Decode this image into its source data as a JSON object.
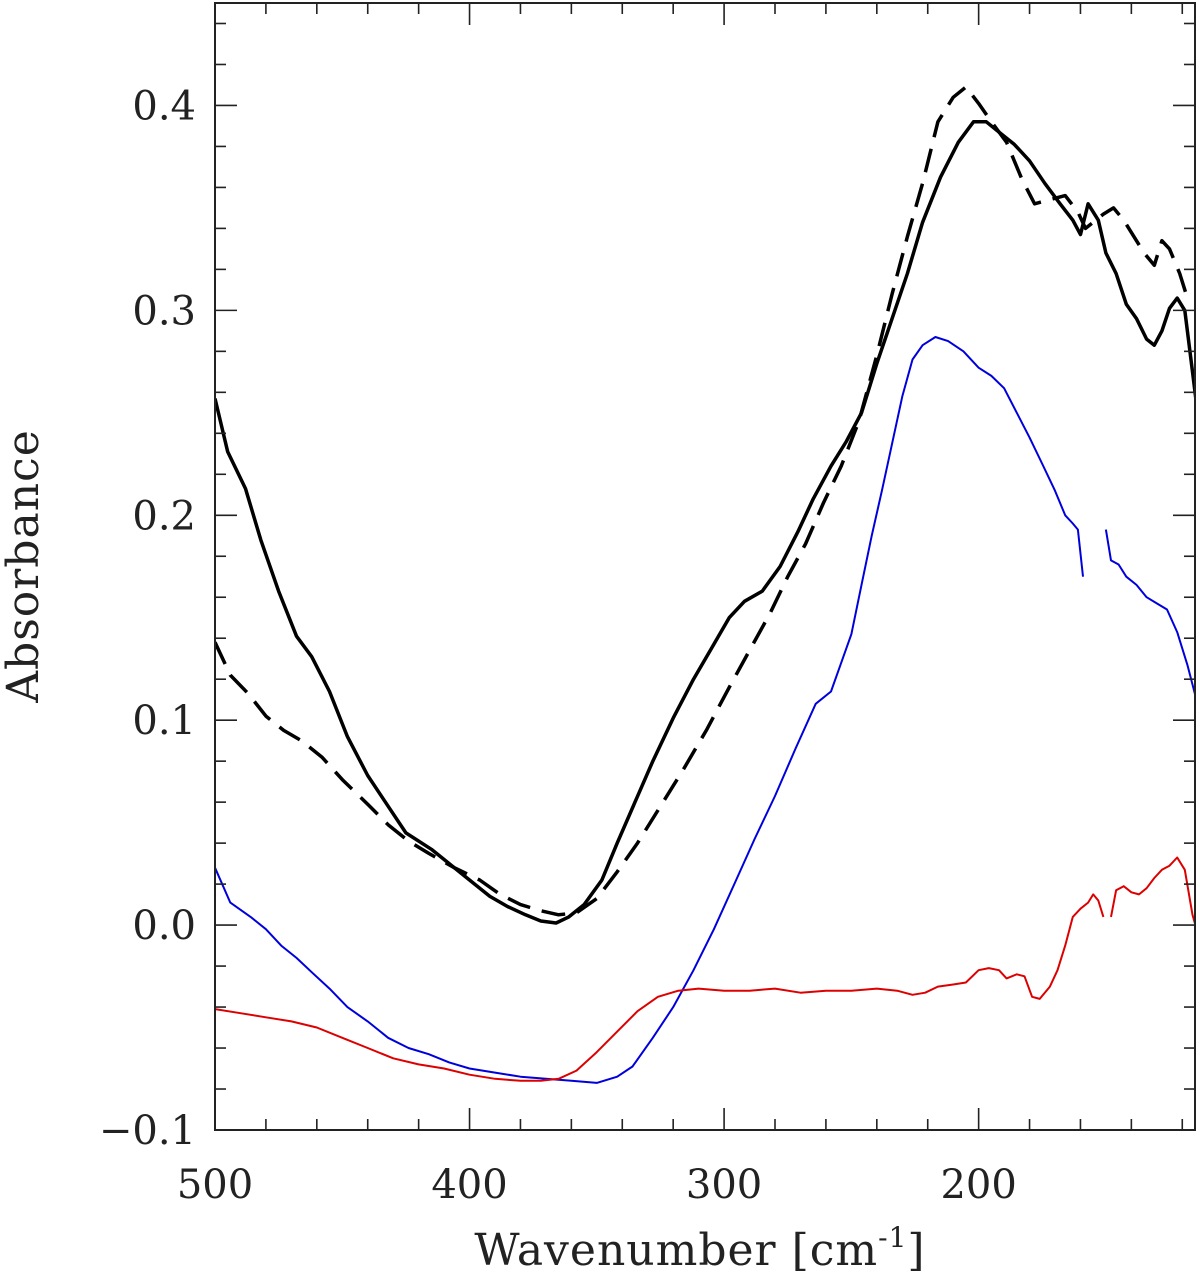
{
  "chart_data": {
    "type": "line",
    "title": "",
    "xlabel": "Wavenumber [cm",
    "xlabel_sup": "-1",
    "xlabel_suffix": "]",
    "ylabel": "Absorbance",
    "xlim": [
      500,
      115
    ],
    "ylim": [
      -0.1,
      0.45
    ],
    "x_reversed": true,
    "grid": false,
    "legend": "none",
    "x_ticks": [
      500,
      400,
      300,
      200
    ],
    "x_tick_labels": [
      "500",
      "400",
      "300",
      "200"
    ],
    "y_ticks": [
      -0.1,
      0.0,
      0.1,
      0.2,
      0.3,
      0.4
    ],
    "y_tick_labels": [
      "−0.1",
      "0.0",
      "0.1",
      "0.2",
      "0.3",
      "0.4"
    ],
    "series": [
      {
        "color": "#000000",
        "style": "solid",
        "width": 3.5,
        "segments": [
          [
            [
              500,
              0.257
            ],
            [
              495,
              0.231
            ],
            [
              488,
              0.213
            ],
            [
              482,
              0.188
            ],
            [
              475,
              0.163
            ],
            [
              468,
              0.141
            ],
            [
              462,
              0.131
            ],
            [
              455,
              0.114
            ],
            [
              448,
              0.092
            ],
            [
              440,
              0.073
            ],
            [
              432,
              0.058
            ],
            [
              425,
              0.045
            ],
            [
              415,
              0.037
            ],
            [
              408,
              0.03
            ],
            [
              400,
              0.022
            ],
            [
              392,
              0.014
            ],
            [
              385,
              0.009
            ],
            [
              378,
              0.005
            ],
            [
              372,
              0.002
            ],
            [
              366,
              0.001
            ],
            [
              361,
              0.004
            ],
            [
              355,
              0.01
            ],
            [
              348,
              0.022
            ],
            [
              342,
              0.04
            ],
            [
              335,
              0.06
            ],
            [
              328,
              0.08
            ],
            [
              320,
              0.101
            ],
            [
              312,
              0.12
            ],
            [
              305,
              0.135
            ],
            [
              298,
              0.15
            ],
            [
              292,
              0.158
            ],
            [
              285,
              0.163
            ],
            [
              278,
              0.175
            ],
            [
              271,
              0.192
            ],
            [
              265,
              0.208
            ],
            [
              258,
              0.224
            ],
            [
              252,
              0.236
            ],
            [
              246,
              0.25
            ],
            [
              240,
              0.274
            ],
            [
              234,
              0.296
            ],
            [
              228,
              0.318
            ],
            [
              222,
              0.343
            ],
            [
              215,
              0.365
            ],
            [
              208,
              0.382
            ],
            [
              202,
              0.392
            ],
            [
              197,
              0.392
            ],
            [
              191,
              0.386
            ],
            [
              186,
              0.381
            ],
            [
              180,
              0.373
            ],
            [
              174,
              0.362
            ],
            [
              168,
              0.352
            ],
            [
              163,
              0.344
            ],
            [
              160,
              0.337
            ],
            [
              157,
              0.352
            ],
            [
              153,
              0.344
            ],
            [
              150,
              0.328
            ],
            [
              146,
              0.318
            ],
            [
              142,
              0.303
            ],
            [
              138,
              0.296
            ],
            [
              134,
              0.286
            ],
            [
              131,
              0.283
            ],
            [
              128,
              0.29
            ],
            [
              125,
              0.301
            ],
            [
              122,
              0.306
            ],
            [
              119,
              0.3
            ],
            [
              116,
              0.27
            ],
            [
              113,
              0.24
            ],
            [
              111,
              0.232
            ],
            [
              108,
              0.246
            ],
            [
              106,
              0.258
            ]
          ]
        ]
      },
      {
        "color": "#000000",
        "style": "dashed",
        "width": 3.5,
        "segments": [
          [
            [
              500,
              0.138
            ],
            [
              494,
              0.122
            ],
            [
              487,
              0.113
            ],
            [
              480,
              0.102
            ],
            [
              473,
              0.095
            ],
            [
              466,
              0.09
            ],
            [
              458,
              0.082
            ],
            [
              450,
              0.071
            ],
            [
              440,
              0.059
            ],
            [
              432,
              0.049
            ],
            [
              424,
              0.041
            ],
            [
              416,
              0.035
            ],
            [
              406,
              0.028
            ],
            [
              396,
              0.022
            ],
            [
              388,
              0.015
            ],
            [
              380,
              0.01
            ],
            [
              372,
              0.007
            ],
            [
              365,
              0.005
            ],
            [
              358,
              0.006
            ],
            [
              350,
              0.013
            ],
            [
              342,
              0.026
            ],
            [
              334,
              0.04
            ],
            [
              325,
              0.058
            ],
            [
              316,
              0.076
            ],
            [
              307,
              0.095
            ],
            [
              298,
              0.116
            ],
            [
              290,
              0.134
            ],
            [
              282,
              0.152
            ],
            [
              275,
              0.17
            ],
            [
              268,
              0.186
            ],
            [
              261,
              0.206
            ],
            [
              254,
              0.224
            ],
            [
              247,
              0.246
            ],
            [
              240,
              0.278
            ],
            [
              234,
              0.308
            ],
            [
              228,
              0.336
            ],
            [
              222,
              0.362
            ],
            [
              216,
              0.392
            ],
            [
              210,
              0.404
            ],
            [
              205,
              0.409
            ],
            [
              200,
              0.401
            ],
            [
              195,
              0.392
            ],
            [
              189,
              0.382
            ],
            [
              183,
              0.364
            ],
            [
              178,
              0.352
            ],
            [
              172,
              0.354
            ],
            [
              166,
              0.356
            ],
            [
              161,
              0.348
            ],
            [
              158,
              0.34
            ],
            [
              155,
              0.343
            ],
            [
              151,
              0.347
            ],
            [
              147,
              0.35
            ],
            [
              143,
              0.344
            ],
            [
              139,
              0.336
            ],
            [
              135,
              0.328
            ],
            [
              131,
              0.322
            ],
            [
              128,
              0.334
            ],
            [
              125,
              0.33
            ],
            [
              121,
              0.318
            ],
            [
              118,
              0.306
            ]
          ]
        ]
      },
      {
        "color": "#0000dd",
        "style": "solid",
        "width": 2,
        "segments": [
          [
            [
              500,
              0.028
            ],
            [
              494,
              0.011
            ],
            [
              486,
              0.004
            ],
            [
              480,
              -0.002
            ],
            [
              474,
              -0.01
            ],
            [
              468,
              -0.016
            ],
            [
              462,
              -0.023
            ],
            [
              455,
              -0.031
            ],
            [
              448,
              -0.04
            ],
            [
              440,
              -0.047
            ],
            [
              432,
              -0.055
            ],
            [
              424,
              -0.06
            ],
            [
              416,
              -0.063
            ],
            [
              408,
              -0.067
            ],
            [
              400,
              -0.07
            ],
            [
              390,
              -0.072
            ],
            [
              380,
              -0.074
            ],
            [
              370,
              -0.075
            ],
            [
              360,
              -0.076
            ],
            [
              350,
              -0.077
            ],
            [
              342,
              -0.074
            ],
            [
              336,
              -0.069
            ],
            [
              328,
              -0.055
            ],
            [
              320,
              -0.04
            ],
            [
              312,
              -0.022
            ],
            [
              304,
              -0.002
            ],
            [
              296,
              0.02
            ],
            [
              288,
              0.042
            ],
            [
              280,
              0.063
            ],
            [
              272,
              0.086
            ],
            [
              264,
              0.108
            ],
            [
              258,
              0.114
            ],
            [
              254,
              0.128
            ],
            [
              250,
              0.142
            ],
            [
              246,
              0.166
            ],
            [
              242,
              0.19
            ],
            [
              238,
              0.212
            ],
            [
              234,
              0.235
            ],
            [
              230,
              0.258
            ],
            [
              226,
              0.276
            ],
            [
              222,
              0.283
            ],
            [
              217,
              0.287
            ],
            [
              212,
              0.285
            ],
            [
              206,
              0.28
            ],
            [
              200,
              0.272
            ],
            [
              195,
              0.268
            ],
            [
              190,
              0.262
            ],
            [
              185,
              0.25
            ],
            [
              180,
              0.238
            ],
            [
              175,
              0.225
            ],
            [
              170,
              0.212
            ],
            [
              166,
              0.2
            ],
            [
              163,
              0.196
            ],
            [
              161,
              0.193
            ],
            [
              159,
              0.17
            ]
          ],
          [
            [
              150,
              0.193
            ],
            [
              148,
              0.178
            ],
            [
              145,
              0.176
            ],
            [
              142,
              0.17
            ],
            [
              138,
              0.166
            ],
            [
              134,
              0.16
            ],
            [
              130,
              0.157
            ],
            [
              126,
              0.154
            ],
            [
              122,
              0.143
            ],
            [
              118,
              0.127
            ],
            [
              114,
              0.108
            ],
            [
              111,
              0.095
            ],
            [
              108,
              0.094
            ],
            [
              106,
              0.101
            ]
          ]
        ]
      },
      {
        "color": "#dd0000",
        "style": "solid",
        "width": 2,
        "segments": [
          [
            [
              500,
              -0.041
            ],
            [
              490,
              -0.043
            ],
            [
              480,
              -0.045
            ],
            [
              470,
              -0.047
            ],
            [
              460,
              -0.05
            ],
            [
              450,
              -0.055
            ],
            [
              440,
              -0.06
            ],
            [
              430,
              -0.065
            ],
            [
              420,
              -0.068
            ],
            [
              410,
              -0.07
            ],
            [
              400,
              -0.073
            ],
            [
              390,
              -0.075
            ],
            [
              380,
              -0.076
            ],
            [
              372,
              -0.076
            ],
            [
              365,
              -0.075
            ],
            [
              358,
              -0.071
            ],
            [
              350,
              -0.062
            ],
            [
              342,
              -0.052
            ],
            [
              334,
              -0.042
            ],
            [
              326,
              -0.035
            ],
            [
              318,
              -0.032
            ],
            [
              310,
              -0.031
            ],
            [
              300,
              -0.032
            ],
            [
              290,
              -0.032
            ],
            [
              280,
              -0.031
            ],
            [
              270,
              -0.033
            ],
            [
              260,
              -0.032
            ],
            [
              250,
              -0.032
            ],
            [
              240,
              -0.031
            ],
            [
              232,
              -0.032
            ],
            [
              226,
              -0.034
            ],
            [
              221,
              -0.033
            ],
            [
              216,
              -0.03
            ],
            [
              210,
              -0.029
            ],
            [
              205,
              -0.028
            ],
            [
              200,
              -0.022
            ],
            [
              196,
              -0.021
            ],
            [
              192,
              -0.022
            ],
            [
              189,
              -0.026
            ],
            [
              185,
              -0.024
            ],
            [
              182,
              -0.025
            ],
            [
              179,
              -0.035
            ],
            [
              176,
              -0.036
            ],
            [
              172,
              -0.03
            ],
            [
              169,
              -0.022
            ],
            [
              166,
              -0.01
            ],
            [
              163,
              0.004
            ],
            [
              160,
              0.008
            ],
            [
              157,
              0.011
            ],
            [
              155,
              0.015
            ],
            [
              153,
              0.012
            ],
            [
              151,
              0.004
            ]
          ],
          [
            [
              148,
              0.004
            ],
            [
              146,
              0.017
            ],
            [
              143,
              0.019
            ],
            [
              140,
              0.016
            ],
            [
              137,
              0.015
            ],
            [
              134,
              0.018
            ],
            [
              131,
              0.023
            ],
            [
              128,
              0.027
            ],
            [
              125,
              0.029
            ],
            [
              122,
              0.033
            ],
            [
              119,
              0.027
            ],
            [
              116,
              0.005
            ],
            [
              113,
              -0.008
            ],
            [
              110,
              -0.016
            ],
            [
              108,
              -0.014
            ],
            [
              106,
              -0.006
            ]
          ]
        ]
      }
    ]
  }
}
